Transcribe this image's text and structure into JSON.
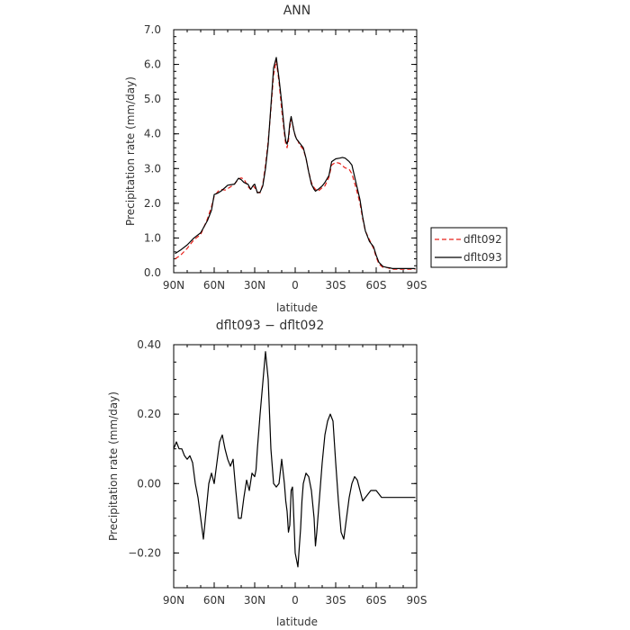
{
  "chart_data": [
    {
      "type": "line",
      "title": "ANN",
      "xlabel": "latitude",
      "ylabel": "Precipitation rate (mm/day)",
      "xlim": [
        90,
        -90
      ],
      "ylim": [
        0,
        7
      ],
      "x_ticks": [
        90,
        60,
        30,
        0,
        -30,
        -60,
        -90
      ],
      "x_tick_labels": [
        "90N",
        "60N",
        "30N",
        "0",
        "30S",
        "60S",
        "90S"
      ],
      "y_ticks": [
        0,
        1,
        2,
        3,
        4,
        5,
        6,
        7
      ],
      "y_tick_labels": [
        "0.0",
        "1.0",
        "2.0",
        "3.0",
        "4.0",
        "5.0",
        "6.0",
        "7.0"
      ],
      "legend_position": "outside-right",
      "series": [
        {
          "name": "dflt092",
          "color": "#e8211a",
          "dash": "dashed",
          "x": [
            89,
            85,
            80,
            75,
            70,
            65,
            62,
            60,
            57,
            55,
            52,
            50,
            45,
            42,
            40,
            38,
            35,
            33,
            31,
            30,
            28,
            26,
            24,
            22,
            20,
            18,
            16,
            14,
            12,
            10,
            8,
            7,
            6,
            5,
            4,
            3,
            2,
            1,
            0,
            -1,
            -2,
            -3,
            -4,
            -5,
            -6,
            -8,
            -10,
            -12,
            -14,
            -15,
            -17,
            -20,
            -22,
            -25,
            -27,
            -30,
            -33,
            -35,
            -37,
            -40,
            -42,
            -45,
            -48,
            -50,
            -52,
            -55,
            -58,
            -60,
            -62,
            -65,
            -68,
            -70,
            -72,
            -74,
            -76,
            -78,
            -80,
            -82,
            -84,
            -86,
            -88,
            -89
          ],
          "y": [
            0.4,
            0.5,
            0.7,
            0.95,
            1.1,
            1.55,
            1.9,
            2.2,
            2.35,
            2.4,
            2.38,
            2.42,
            2.55,
            2.7,
            2.73,
            2.7,
            2.48,
            2.4,
            2.5,
            2.45,
            2.32,
            2.3,
            2.55,
            3.1,
            3.8,
            4.7,
            5.7,
            6.1,
            5.5,
            4.7,
            4.0,
            3.7,
            3.6,
            3.8,
            4.2,
            4.4,
            4.3,
            4.1,
            3.95,
            3.85,
            3.8,
            3.7,
            3.65,
            3.6,
            3.55,
            3.3,
            2.9,
            2.6,
            2.45,
            2.4,
            2.35,
            2.45,
            2.5,
            2.75,
            3.1,
            3.18,
            3.15,
            3.08,
            3.02,
            2.98,
            2.85,
            2.45,
            2.0,
            1.55,
            1.2,
            0.95,
            0.7,
            0.45,
            0.25,
            0.15,
            0.15,
            0.12,
            0.1,
            0.1,
            0.1,
            0.1,
            0.1,
            0.1,
            0.1,
            0.1,
            0.1,
            0.1
          ]
        },
        {
          "name": "dflt093",
          "color": "#000000",
          "dash": "solid",
          "x": [
            89,
            85,
            80,
            75,
            70,
            65,
            62,
            60,
            57,
            55,
            52,
            50,
            45,
            42,
            40,
            38,
            35,
            33,
            31,
            30,
            28,
            26,
            24,
            22,
            20,
            18,
            16,
            14,
            12,
            10,
            8,
            7,
            6,
            5,
            4,
            3,
            2,
            1,
            0,
            -1,
            -2,
            -3,
            -4,
            -5,
            -6,
            -8,
            -10,
            -12,
            -14,
            -15,
            -17,
            -20,
            -22,
            -25,
            -27,
            -30,
            -33,
            -35,
            -37,
            -40,
            -42,
            -45,
            -48,
            -50,
            -52,
            -55,
            -58,
            -60,
            -62,
            -65,
            -68,
            -70,
            -72,
            -74,
            -76,
            -78,
            -80,
            -82,
            -84,
            -86,
            -88,
            -89
          ],
          "y": [
            0.55,
            0.65,
            0.8,
            1.0,
            1.15,
            1.5,
            1.8,
            2.25,
            2.3,
            2.35,
            2.45,
            2.52,
            2.55,
            2.72,
            2.68,
            2.6,
            2.55,
            2.4,
            2.52,
            2.55,
            2.3,
            2.32,
            2.5,
            3.0,
            3.7,
            4.8,
            5.9,
            6.2,
            5.6,
            4.9,
            4.1,
            3.8,
            3.7,
            3.9,
            4.3,
            4.5,
            4.3,
            4.1,
            3.95,
            3.85,
            3.8,
            3.75,
            3.7,
            3.65,
            3.6,
            3.3,
            2.9,
            2.55,
            2.4,
            2.35,
            2.4,
            2.5,
            2.6,
            2.8,
            3.2,
            3.28,
            3.3,
            3.32,
            3.3,
            3.2,
            3.1,
            2.6,
            2.1,
            1.6,
            1.2,
            0.9,
            0.75,
            0.5,
            0.3,
            0.18,
            0.15,
            0.14,
            0.12,
            0.12,
            0.12,
            0.12,
            0.12,
            0.12,
            0.12,
            0.12,
            0.12,
            0.12
          ]
        }
      ]
    },
    {
      "type": "line",
      "title": "dflt093 − dflt092",
      "xlabel": "latitude",
      "ylabel": "Precipitation rate (mm/day)",
      "xlim": [
        90,
        -90
      ],
      "ylim": [
        -0.3,
        0.4
      ],
      "x_ticks": [
        90,
        60,
        30,
        0,
        -30,
        -60,
        -90
      ],
      "x_tick_labels": [
        "90N",
        "60N",
        "30N",
        "0",
        "30S",
        "60S",
        "90S"
      ],
      "y_ticks": [
        0.4,
        0.2,
        0.0,
        -0.2
      ],
      "y_tick_labels": [
        "0.40",
        "0.20",
        "0.00",
        "−0.20"
      ],
      "series": [
        {
          "color": "#000000",
          "dash": "solid",
          "x": [
            90,
            88,
            86,
            84,
            82,
            80,
            78,
            76,
            74,
            72,
            70,
            68,
            66,
            64,
            62,
            60,
            58,
            56,
            54,
            52,
            50,
            48,
            46,
            44,
            42,
            40,
            38,
            36,
            34,
            32,
            30,
            29,
            28,
            27,
            26,
            24,
            22,
            20,
            18,
            16,
            14,
            12,
            10,
            8,
            7,
            6,
            5,
            4,
            3,
            2,
            1,
            0,
            -2,
            -4,
            -5,
            -6,
            -8,
            -10,
            -12,
            -14,
            -15,
            -16,
            -18,
            -20,
            -22,
            -24,
            -26,
            -28,
            -30,
            -32,
            -34,
            -36,
            -38,
            -40,
            -42,
            -44,
            -46,
            -48,
            -50,
            -52,
            -54,
            -56,
            -58,
            -60,
            -62,
            -64,
            -66,
            -68,
            -70,
            -72,
            -74,
            -76,
            -78,
            -80,
            -82,
            -84,
            -86,
            -88,
            -89
          ],
          "y": [
            0.1,
            0.12,
            0.1,
            0.1,
            0.08,
            0.07,
            0.08,
            0.06,
            0.0,
            -0.04,
            -0.1,
            -0.16,
            -0.08,
            0.0,
            0.03,
            0.0,
            0.06,
            0.12,
            0.14,
            0.1,
            0.07,
            0.05,
            0.07,
            -0.02,
            -0.1,
            -0.1,
            -0.04,
            0.01,
            -0.02,
            0.03,
            0.02,
            0.04,
            0.1,
            0.15,
            0.2,
            0.29,
            0.38,
            0.3,
            0.1,
            0.0,
            -0.01,
            0.0,
            0.07,
            0.0,
            -0.05,
            -0.08,
            -0.14,
            -0.12,
            -0.02,
            -0.01,
            -0.1,
            -0.2,
            -0.24,
            -0.13,
            -0.05,
            0.0,
            0.03,
            0.02,
            -0.02,
            -0.1,
            -0.18,
            -0.14,
            -0.04,
            0.06,
            0.14,
            0.18,
            0.2,
            0.18,
            0.06,
            -0.05,
            -0.14,
            -0.16,
            -0.1,
            -0.04,
            0.0,
            0.02,
            0.01,
            -0.02,
            -0.05,
            -0.04,
            -0.03,
            -0.02,
            -0.02,
            -0.02,
            -0.03,
            -0.04,
            -0.04,
            -0.04,
            -0.04,
            -0.04,
            -0.04,
            -0.04,
            -0.04,
            -0.04,
            -0.04,
            -0.04,
            -0.04,
            -0.04,
            -0.04
          ]
        }
      ]
    }
  ]
}
